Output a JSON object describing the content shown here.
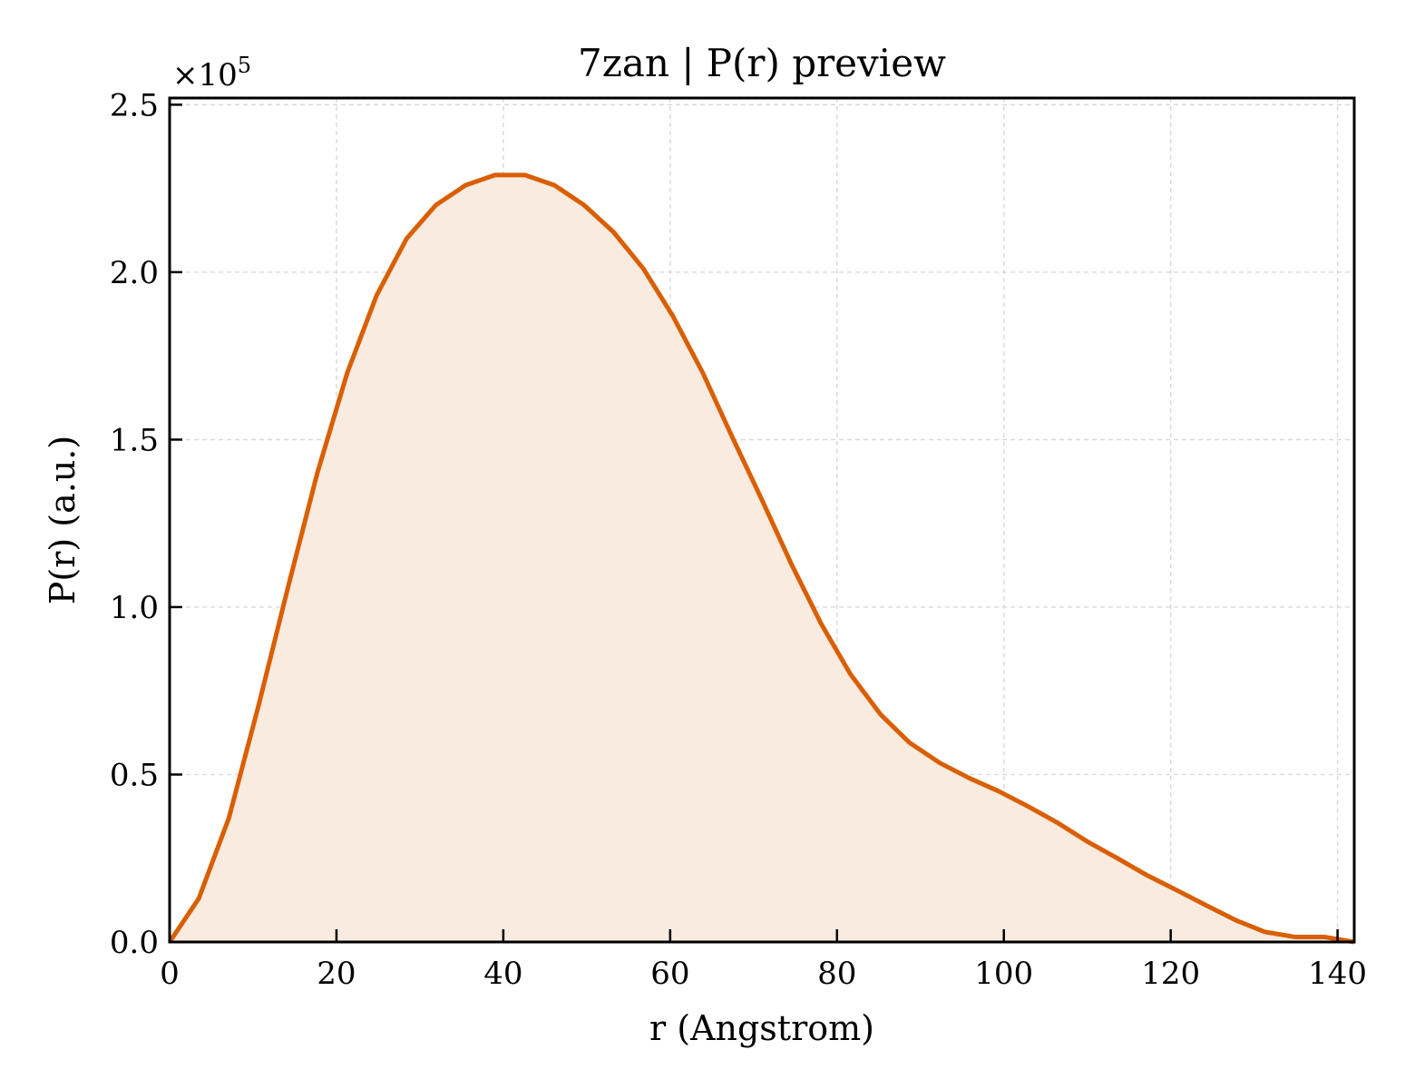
{
  "chart_data": {
    "type": "area",
    "title": "7zan | P(r) preview",
    "xlabel": "r (Angstrom)",
    "ylabel": "P(r) (a.u.)",
    "y_offset_base": "×10",
    "y_offset_exponent": "5",
    "xlim": [
      0,
      142
    ],
    "ylim": [
      0,
      2.52
    ],
    "xticks": [
      0,
      20,
      40,
      60,
      80,
      100,
      120,
      140
    ],
    "xtick_labels": [
      "0",
      "20",
      "40",
      "60",
      "80",
      "100",
      "120",
      "140"
    ],
    "yticks": [
      0,
      0.5,
      1.0,
      1.5,
      2.0,
      2.5
    ],
    "ytick_labels": [
      "0.0",
      "0.5",
      "1.0",
      "1.5",
      "2.0",
      "2.5"
    ],
    "grid": true,
    "legend": "none",
    "line_color": "#d95f02",
    "fill_color": "#f9ebe0",
    "series": [
      {
        "x": [
          0,
          3.5,
          7.1,
          10.6,
          14.2,
          17.7,
          21.3,
          24.8,
          28.4,
          31.9,
          35.5,
          39.0,
          42.6,
          46.1,
          49.7,
          53.2,
          56.8,
          60.3,
          63.9,
          67.4,
          71.0,
          74.5,
          78.1,
          81.6,
          85.2,
          88.7,
          92.3,
          95.8,
          99.4,
          102.9,
          106.5,
          110.0,
          113.6,
          117.1,
          120.7,
          124.2,
          127.8,
          131.3,
          134.9,
          138.4,
          142.0
        ],
        "y": [
          0.0,
          0.13,
          0.37,
          0.7,
          1.06,
          1.4,
          1.7,
          1.93,
          2.1,
          2.2,
          2.26,
          2.29,
          2.29,
          2.26,
          2.2,
          2.12,
          2.01,
          1.87,
          1.7,
          1.51,
          1.32,
          1.13,
          0.95,
          0.8,
          0.68,
          0.595,
          0.535,
          0.49,
          0.45,
          0.405,
          0.355,
          0.3,
          0.25,
          0.2,
          0.155,
          0.11,
          0.065,
          0.03,
          0.015,
          0.015,
          0.0
        ]
      }
    ]
  }
}
